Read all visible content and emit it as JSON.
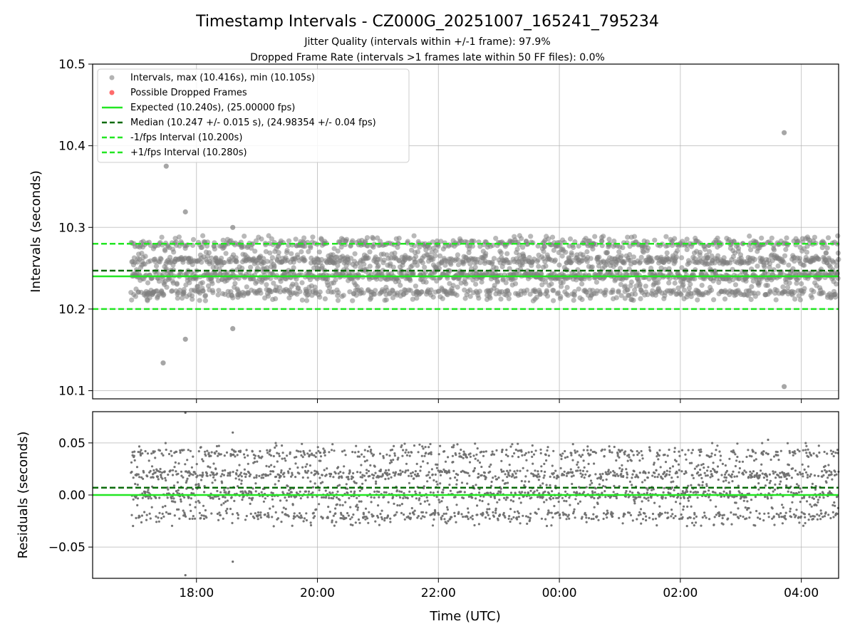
{
  "chart_data": [
    {
      "type": "scatter",
      "title": "Timestamp Intervals - CZ000G_20251007_165241_795234",
      "subtitle_lines": [
        "Jitter Quality (intervals within +/-1 frame): 97.9%",
        "Dropped Frame Rate (intervals >1 frames late within 50 FF files): 0.0%"
      ],
      "xlabel": "",
      "ylabel": "Intervals (seconds)",
      "x_axis": {
        "type": "time",
        "start": "16:17",
        "end": "04:37",
        "ticks": [
          "18:00",
          "20:00",
          "22:00",
          "00:00",
          "02:00",
          "04:00"
        ]
      },
      "ylim": [
        10.09,
        10.5
      ],
      "yticks": [
        "10.1",
        "10.2",
        "10.3",
        "10.4",
        "10.5"
      ],
      "grid": true,
      "legend_placement": "top-left",
      "legend": [
        {
          "label": "Intervals, max (10.416s), min (10.105s)",
          "marker": "circle",
          "color": "#999999"
        },
        {
          "label": "Possible Dropped Frames",
          "marker": "circle",
          "color": "#ff6b6b"
        },
        {
          "label": "Expected (10.240s), (25.00000 fps)",
          "line": "solid",
          "color": "#22e622"
        },
        {
          "label": "Median (10.247 +/- 0.015 s), (24.98354 +/- 0.04 fps)",
          "line": "dashed",
          "color": "#0c6b0c"
        },
        {
          "label": "-1/fps Interval (10.200s)",
          "line": "dashed",
          "color": "#22e622"
        },
        {
          "label": "+1/fps Interval (10.280s)",
          "line": "dashed",
          "color": "#22e622"
        }
      ],
      "reference_lines": [
        {
          "name": "expected",
          "y": 10.24,
          "style": "solid",
          "color": "#22e622"
        },
        {
          "name": "median",
          "y": 10.247,
          "style": "dashed",
          "color": "#0c6b0c"
        },
        {
          "name": "minus1",
          "y": 10.2,
          "style": "dashed",
          "color": "#22e622"
        },
        {
          "name": "plus1",
          "y": 10.28,
          "style": "dashed",
          "color": "#22e622"
        }
      ],
      "series": [
        {
          "marker_color": "#808080",
          "time_range": [
            "16:55",
            "04:37"
          ],
          "typical_values": [
            10.22,
            10.24,
            10.26,
            10.28
          ],
          "spread": 0.02,
          "outliers": [
            {
              "t": "17:30",
              "y": 10.375
            },
            {
              "t": "17:27",
              "y": 10.134
            },
            {
              "t": "17:49",
              "y": 10.319
            },
            {
              "t": "17:49",
              "y": 10.163
            },
            {
              "t": "18:36",
              "y": 10.3
            },
            {
              "t": "18:36",
              "y": 10.176
            },
            {
              "t": "03:43",
              "y": 10.416
            },
            {
              "t": "03:43",
              "y": 10.105
            }
          ]
        }
      ]
    },
    {
      "type": "scatter",
      "title": "",
      "xlabel": "Time (UTC)",
      "ylabel": "Residuals (seconds)",
      "x_axis": {
        "type": "time",
        "start": "16:17",
        "end": "04:37",
        "ticks": [
          "18:00",
          "20:00",
          "22:00",
          "00:00",
          "02:00",
          "04:00"
        ]
      },
      "ylim": [
        -0.08,
        0.08
      ],
      "yticks": [
        "0.05",
        "0.00",
        "−0.05"
      ],
      "ytick_values": [
        0.05,
        0.0,
        -0.05
      ],
      "grid": true,
      "reference_lines": [
        {
          "name": "expected",
          "y": 0.0,
          "style": "solid",
          "color": "#22e622"
        },
        {
          "name": "median",
          "y": 0.007,
          "style": "dashed",
          "color": "#0c6b0c"
        }
      ],
      "series": [
        {
          "marker_color": "#6e6e6e",
          "time_range": [
            "16:55",
            "04:37"
          ],
          "typical_values": [
            -0.02,
            0.0,
            0.02,
            0.04
          ],
          "spread": 0.02,
          "outliers": [
            {
              "t": "17:49",
              "y": 0.079
            },
            {
              "t": "17:49",
              "y": -0.077
            },
            {
              "t": "18:36",
              "y": 0.06
            },
            {
              "t": "18:36",
              "y": -0.064
            },
            {
              "t": "03:27",
              "y": 0.053
            }
          ]
        }
      ]
    }
  ]
}
